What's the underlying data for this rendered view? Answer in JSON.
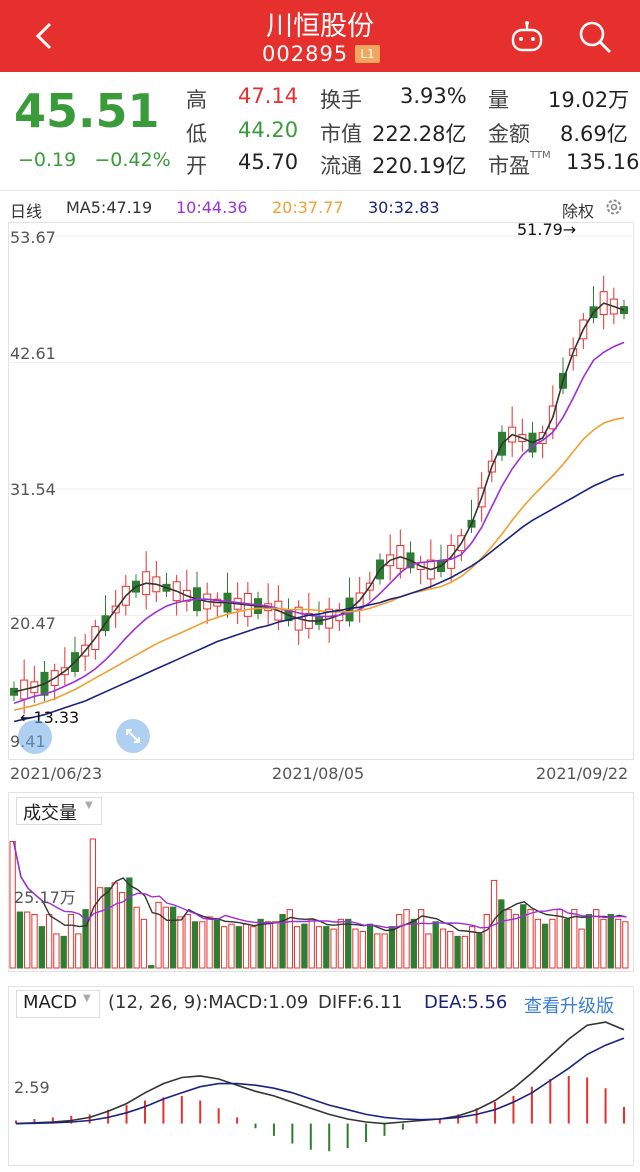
{
  "header": {
    "title": "川恒股份",
    "code": "002895",
    "level_badge": "L1",
    "icons": [
      "back-icon",
      "robot-icon",
      "search-icon"
    ]
  },
  "quote": {
    "price": "45.51",
    "change": "−0.19",
    "change_pct": "−0.42%",
    "high_label": "高",
    "high": "47.14",
    "low_label": "低",
    "low": "44.20",
    "open_label": "开",
    "open": "45.70",
    "turnover_label": "换手",
    "turnover": "3.93%",
    "mktcap_label": "市值",
    "mktcap": "222.28亿",
    "float_label": "流通",
    "float_cap": "220.19亿",
    "volume_label": "量",
    "volume": "19.02万",
    "amount_label": "金额",
    "amount": "8.69亿",
    "pe_label": "市盈",
    "pe_sup": "TTM",
    "pe": "135.16",
    "colors": {
      "up": "#e5302e",
      "down": "#3a9b3a"
    }
  },
  "ma_bar": {
    "period": "日线",
    "ma5": "MA5:47.19",
    "ma10": "10:44.36",
    "ma20": "20:37.77",
    "ma30": "30:32.83",
    "adjust": "除权",
    "colors": {
      "ma5": "#333333",
      "ma10": "#9b30d9",
      "ma20": "#f0a030",
      "ma30": "#1a237e"
    }
  },
  "main_chart": {
    "y_ticks": [
      "53.67",
      "42.61",
      "31.54",
      "20.47",
      "9.41"
    ],
    "dates": [
      "2021/06/23",
      "2021/08/05",
      "2021/09/22"
    ],
    "high_annotation": "51.79→",
    "low_annotation": "←13.33"
  },
  "chart_data": [
    {
      "type": "candlestick",
      "title": "",
      "ylim": [
        9.41,
        53.67
      ],
      "x_labels": [
        "2021/06/23",
        "2021/08/05",
        "2021/09/22"
      ],
      "series": [
        {
          "name": "MA5",
          "values": [
            13.8,
            14.0,
            14.2,
            14.5,
            15.0,
            15.6,
            16.4,
            17.4,
            18.5,
            19.8,
            21.0,
            22.2,
            23.0,
            23.3,
            23.2,
            22.9,
            22.6,
            22.2,
            21.9,
            21.7,
            21.6,
            21.6,
            21.5,
            21.4,
            21.3,
            21.2,
            20.9,
            20.5,
            20.2,
            20.0,
            20.0,
            20.2,
            20.5,
            21.0,
            21.8,
            23.0,
            24.5,
            25.3,
            25.6,
            25.3,
            24.8,
            24.5,
            24.8,
            25.6,
            26.8,
            28.5,
            30.8,
            33.5,
            35.5,
            36.3,
            36.0,
            35.6,
            36.0,
            37.8,
            41.0,
            43.5,
            45.5,
            47.0,
            47.8,
            47.5,
            47.19
          ]
        },
        {
          "name": "MA10",
          "values": [
            12.8,
            13.1,
            13.4,
            13.6,
            13.9,
            14.3,
            14.7,
            15.2,
            15.8,
            16.6,
            17.5,
            18.5,
            19.4,
            20.2,
            20.8,
            21.3,
            21.6,
            21.8,
            21.9,
            21.9,
            21.8,
            21.7,
            21.6,
            21.5,
            21.4,
            21.3,
            21.1,
            20.9,
            20.7,
            20.5,
            20.4,
            20.4,
            20.5,
            20.7,
            21.0,
            21.6,
            22.4,
            23.3,
            24.2,
            24.9,
            25.1,
            25.2,
            25.3,
            25.4,
            25.8,
            26.8,
            28.2,
            30.0,
            31.8,
            33.3,
            34.5,
            35.3,
            35.8,
            36.5,
            37.8,
            39.5,
            41.3,
            42.8,
            43.5,
            44.0,
            44.36
          ]
        },
        {
          "name": "MA20",
          "values": [
            12.2,
            12.4,
            12.6,
            12.9,
            13.2,
            13.6,
            14.0,
            14.5,
            15.0,
            15.5,
            16.0,
            16.5,
            17.0,
            17.5,
            18.0,
            18.4,
            18.8,
            19.2,
            19.6,
            20.0,
            20.3,
            20.6,
            20.8,
            21.0,
            21.1,
            21.1,
            21.1,
            21.0,
            21.0,
            21.0,
            20.9,
            20.8,
            20.8,
            20.8,
            20.9,
            21.1,
            21.4,
            21.7,
            22.1,
            22.4,
            22.6,
            22.8,
            23.0,
            23.4,
            23.9,
            24.6,
            25.5,
            26.5,
            27.6,
            28.8,
            29.9,
            30.9,
            31.8,
            32.7,
            33.7,
            34.8,
            35.9,
            36.7,
            37.3,
            37.6,
            37.77
          ]
        },
        {
          "name": "MA30",
          "values": [
            11.2,
            11.4,
            11.6,
            11.8,
            12.1,
            12.4,
            12.7,
            13.0,
            13.4,
            13.8,
            14.2,
            14.6,
            15.0,
            15.4,
            15.8,
            16.2,
            16.6,
            17.0,
            17.4,
            17.8,
            18.2,
            18.5,
            18.8,
            19.1,
            19.4,
            19.6,
            19.9,
            20.1,
            20.3,
            20.5,
            20.6,
            20.8,
            20.9,
            21.1,
            21.2,
            21.4,
            21.6,
            21.9,
            22.1,
            22.4,
            22.7,
            23.0,
            23.4,
            23.8,
            24.3,
            24.8,
            25.4,
            26.1,
            26.8,
            27.5,
            28.2,
            28.8,
            29.3,
            29.8,
            30.3,
            30.8,
            31.3,
            31.8,
            32.2,
            32.6,
            32.83
          ]
        }
      ]
    },
    {
      "type": "bar",
      "title": "成交量",
      "ylabel": "",
      "y_tick": "25.17万",
      "ylim": [
        0,
        60
      ],
      "values": [
        52,
        23,
        23,
        22,
        17,
        22,
        14,
        13,
        22,
        14,
        24,
        53,
        33,
        33,
        35,
        31,
        37,
        25,
        20,
        1,
        27,
        25,
        25,
        21,
        22,
        19,
        19,
        21,
        20,
        17,
        18,
        17,
        18,
        17,
        20,
        19,
        19,
        22,
        24,
        17,
        18,
        20,
        17,
        17,
        16,
        20,
        20,
        16,
        15,
        18,
        14,
        14,
        17,
        22,
        24,
        20,
        24,
        14,
        19,
        16,
        15,
        13,
        13,
        17,
        14,
        22,
        36,
        28,
        24,
        22,
        26,
        24,
        20,
        18,
        20,
        24,
        20,
        24,
        16,
        22,
        24,
        20,
        22,
        20,
        19
      ]
    },
    {
      "type": "bar",
      "title": "MACD",
      "y_tick": "2.59",
      "ylim": [
        -2.5,
        7.0
      ],
      "series": [
        {
          "name": "DIFF",
          "values": [
            0.0,
            0.05,
            0.1,
            0.2,
            0.4,
            0.8,
            1.3,
            2.0,
            2.6,
            3.0,
            3.1,
            2.9,
            2.5,
            2.1,
            1.8,
            1.4,
            1.0,
            0.6,
            0.3,
            0.1,
            0.0,
            0.1,
            0.2,
            0.3,
            0.5,
            0.9,
            1.5,
            2.3,
            3.3,
            4.4,
            5.5,
            6.4,
            6.6,
            6.11
          ]
        },
        {
          "name": "DEA",
          "values": [
            0.0,
            0.02,
            0.05,
            0.1,
            0.2,
            0.4,
            0.7,
            1.1,
            1.6,
            2.0,
            2.4,
            2.6,
            2.6,
            2.5,
            2.3,
            2.0,
            1.6,
            1.2,
            0.9,
            0.6,
            0.4,
            0.3,
            0.25,
            0.3,
            0.4,
            0.6,
            0.9,
            1.4,
            2.0,
            2.8,
            3.6,
            4.5,
            5.1,
            5.56
          ]
        }
      ],
      "histogram": [
        0.2,
        0.3,
        0.4,
        0.5,
        0.6,
        0.9,
        1.2,
        1.5,
        1.7,
        1.8,
        1.5,
        1.0,
        0.4,
        -0.3,
        -0.8,
        -1.3,
        -1.7,
        -1.8,
        -1.6,
        -1.2,
        -0.8,
        -0.4,
        0.0,
        0.3,
        0.6,
        1.0,
        1.4,
        1.8,
        2.4,
        2.9,
        3.1,
        3.0,
        2.3,
        1.09
      ],
      "params": "(12, 26, 9):MACD:1.09",
      "diff_label": "DIFF:6.11",
      "dea_label": "DEA:5.56",
      "upgrade_link": "查看升级版"
    }
  ]
}
